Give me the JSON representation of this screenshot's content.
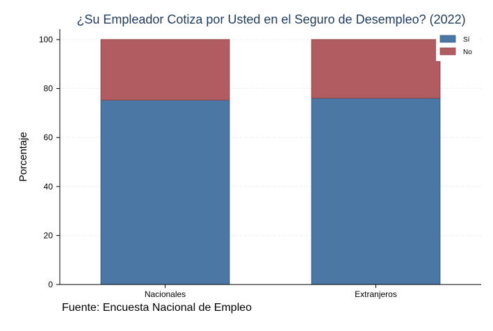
{
  "chart_data": {
    "type": "bar",
    "stacked": true,
    "title": "¿Su Empleador Cotiza por Usted en el Seguro de Desempleo? (2022)",
    "xlabel": "",
    "ylabel": "Porcentaje",
    "categories": [
      "Nacionales",
      "Extranjeros"
    ],
    "series": [
      {
        "name": "Sí",
        "values": [
          75.3,
          76.1
        ],
        "color": "#4a77a3"
      },
      {
        "name": "No",
        "values": [
          24.7,
          23.9
        ],
        "color": "#b05c61"
      }
    ],
    "ylim": [
      0,
      100
    ],
    "yticks": [
      0,
      20,
      40,
      60,
      80,
      100
    ],
    "grid": true,
    "legend_position": "top-right"
  },
  "source_note": "Fuente: Encuesta Nacional de Empleo"
}
